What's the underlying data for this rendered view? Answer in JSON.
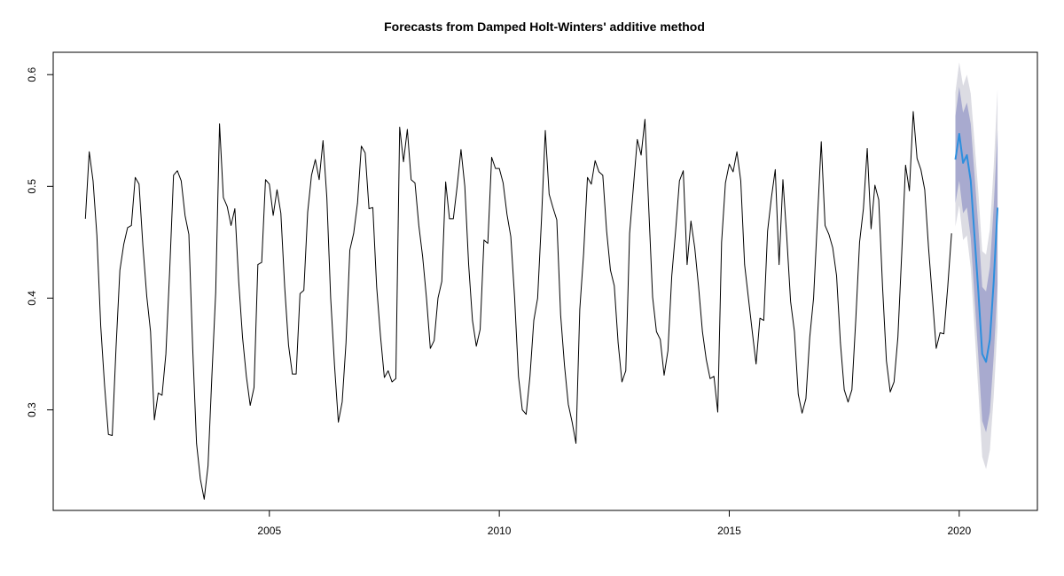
{
  "chart_data": {
    "type": "line",
    "title": "Forecasts from Damped Holt-Winters' additive method",
    "xlabel": "",
    "ylabel": "",
    "xlim": [
      2000.3,
      2021.7
    ],
    "ylim": [
      0.21,
      0.62
    ],
    "x_ticks": [
      2005,
      2010,
      2015,
      2020
    ],
    "x_tick_labels": [
      "2005",
      "2010",
      "2015",
      "2020"
    ],
    "y_ticks": [
      0.3,
      0.4,
      0.5,
      0.6
    ],
    "y_tick_labels": [
      "0.3",
      "0.4",
      "0.5",
      "0.6"
    ],
    "grid": false,
    "legend": "none",
    "colors": {
      "series": "#000000",
      "forecast": "#2d8fde",
      "band80": "#a8aacf",
      "band95": "#dcdce3"
    },
    "series": [
      {
        "x_start": 2001.0,
        "frequency": 12,
        "values": [
          0.471,
          0.531,
          0.505,
          0.456,
          0.375,
          0.322,
          0.278,
          0.277,
          0.356,
          0.425,
          0.448,
          0.463,
          0.465,
          0.508,
          0.502,
          0.447,
          0.402,
          0.37,
          0.291,
          0.315,
          0.313,
          0.35,
          0.425,
          0.51,
          0.514,
          0.505,
          0.474,
          0.457,
          0.355,
          0.27,
          0.238,
          0.22,
          0.25,
          0.33,
          0.405,
          0.556,
          0.49,
          0.482,
          0.465,
          0.48,
          0.415,
          0.365,
          0.33,
          0.304,
          0.32,
          0.43,
          0.432,
          0.506,
          0.502,
          0.474,
          0.497,
          0.476,
          0.41,
          0.358,
          0.332,
          0.332,
          0.404,
          0.407,
          0.477,
          0.51,
          0.524,
          0.506,
          0.541,
          0.49,
          0.4,
          0.34,
          0.289,
          0.307,
          0.36,
          0.443,
          0.458,
          0.485,
          0.536,
          0.53,
          0.48,
          0.481,
          0.41,
          0.366,
          0.329,
          0.335,
          0.325,
          0.328,
          0.553,
          0.522,
          0.551,
          0.506,
          0.503,
          0.465,
          0.437,
          0.4,
          0.355,
          0.362,
          0.4,
          0.415,
          0.504,
          0.471,
          0.471,
          0.5,
          0.533,
          0.5,
          0.43,
          0.38,
          0.357,
          0.372,
          0.452,
          0.449,
          0.526,
          0.516,
          0.516,
          0.503,
          0.475,
          0.455,
          0.4,
          0.33,
          0.3,
          0.296,
          0.33,
          0.38,
          0.4,
          0.47,
          0.55,
          0.493,
          0.481,
          0.47,
          0.385,
          0.34,
          0.305,
          0.289,
          0.27,
          0.39,
          0.44,
          0.508,
          0.502,
          0.523,
          0.513,
          0.51,
          0.46,
          0.425,
          0.411,
          0.36,
          0.325,
          0.335,
          0.458,
          0.5,
          0.542,
          0.528,
          0.56,
          0.48,
          0.401,
          0.37,
          0.363,
          0.331,
          0.353,
          0.42,
          0.46,
          0.505,
          0.514,
          0.43,
          0.469,
          0.445,
          0.41,
          0.37,
          0.345,
          0.328,
          0.33,
          0.298,
          0.45,
          0.503,
          0.52,
          0.513,
          0.531,
          0.505,
          0.43,
          0.4,
          0.37,
          0.341,
          0.382,
          0.38,
          0.46,
          0.49,
          0.515,
          0.43,
          0.506,
          0.455,
          0.397,
          0.37,
          0.314,
          0.297,
          0.31,
          0.365,
          0.4,
          0.47,
          0.54,
          0.465,
          0.457,
          0.445,
          0.42,
          0.36,
          0.318,
          0.307,
          0.318,
          0.38,
          0.45,
          0.48,
          0.534,
          0.462,
          0.501,
          0.488,
          0.41,
          0.344,
          0.316,
          0.325,
          0.365,
          0.44,
          0.519,
          0.496,
          0.567,
          0.525,
          0.515,
          0.497,
          0.445,
          0.4,
          0.355,
          0.369,
          0.368,
          0.41,
          0.458
        ]
      },
      {
        "name": "",
        "x_start": 2019.917,
        "frequency": 12,
        "values": [
          0.524,
          0.547,
          0.521,
          0.528,
          0.505,
          0.455,
          0.405,
          0.35,
          0.343,
          0.363,
          0.415,
          0.481
        ],
        "lower80": [
          0.485,
          0.505,
          0.476,
          0.481,
          0.454,
          0.4,
          0.347,
          0.29,
          0.28,
          0.298,
          0.348,
          0.412
        ],
        "upper80": [
          0.563,
          0.589,
          0.566,
          0.575,
          0.556,
          0.51,
          0.463,
          0.41,
          0.406,
          0.428,
          0.482,
          0.55
        ],
        "lower95": [
          0.464,
          0.483,
          0.452,
          0.456,
          0.427,
          0.371,
          0.316,
          0.258,
          0.247,
          0.264,
          0.312,
          0.375
        ],
        "upper95": [
          0.584,
          0.611,
          0.59,
          0.6,
          0.583,
          0.539,
          0.494,
          0.442,
          0.439,
          0.462,
          0.518,
          0.587
        ]
      }
    ]
  }
}
